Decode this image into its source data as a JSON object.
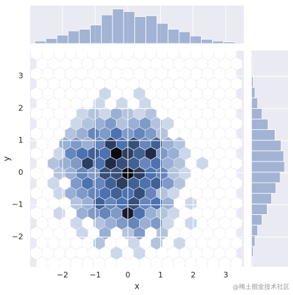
{
  "chart_data": {
    "type": "hexbin",
    "xlabel": "x",
    "ylabel": "y",
    "xlim": [
      -2.99,
      3.55
    ],
    "ylim": [
      -2.93,
      3.8
    ],
    "xticks": [
      {
        "value": -2,
        "label": "−2"
      },
      {
        "value": -1,
        "label": "−1"
      },
      0,
      1,
      2,
      3
    ],
    "yticks": [
      {
        "value": -2,
        "label": "−2"
      },
      {
        "value": -1,
        "label": "−1"
      },
      0,
      1,
      2,
      3
    ],
    "grid": true,
    "cmap": [
      "#e6ebf5",
      "#4c72b0",
      "#0b0b12"
    ],
    "hexes": [
      [
        -0.35,
        -2.5,
        1
      ],
      [
        0.35,
        -2.5,
        1
      ],
      [
        -0.88,
        -2.19,
        2
      ],
      [
        0.18,
        -2.19,
        1
      ],
      [
        0.88,
        -2.19,
        2
      ],
      [
        1.58,
        -2.19,
        1
      ],
      [
        -1.4,
        -1.88,
        1
      ],
      [
        -0.7,
        -1.88,
        3
      ],
      [
        0,
        -1.88,
        2
      ],
      [
        0.35,
        -1.88,
        4
      ],
      [
        1.05,
        -1.88,
        2
      ],
      [
        -1.58,
        -1.57,
        1
      ],
      [
        -0.88,
        -1.57,
        2
      ],
      [
        -0.53,
        -1.57,
        3
      ],
      [
        -0.18,
        -1.57,
        4
      ],
      [
        0.18,
        -1.57,
        5
      ],
      [
        0.53,
        -1.57,
        3
      ],
      [
        0.88,
        -1.57,
        4
      ],
      [
        1.23,
        -1.57,
        1
      ],
      [
        1.93,
        -1.57,
        1
      ],
      [
        -2.1,
        -1.26,
        1
      ],
      [
        -1.4,
        -1.26,
        3
      ],
      [
        -1.05,
        -1.26,
        4
      ],
      [
        -0.7,
        -1.26,
        5
      ],
      [
        -0.35,
        -1.26,
        4
      ],
      [
        0,
        -1.26,
        11
      ],
      [
        0.35,
        -1.26,
        6
      ],
      [
        0.7,
        -1.26,
        3
      ],
      [
        1.05,
        -1.26,
        2
      ],
      [
        1.4,
        -1.26,
        1
      ],
      [
        -1.58,
        -0.95,
        2
      ],
      [
        -1.23,
        -0.95,
        3
      ],
      [
        -0.88,
        -0.95,
        7
      ],
      [
        -0.53,
        -0.95,
        5
      ],
      [
        -0.18,
        -0.95,
        6
      ],
      [
        0.18,
        -0.95,
        8
      ],
      [
        0.53,
        -0.95,
        5
      ],
      [
        0.88,
        -0.95,
        6
      ],
      [
        1.23,
        -0.95,
        3
      ],
      [
        1.93,
        -0.95,
        1
      ],
      [
        -2.1,
        -0.64,
        1
      ],
      [
        -1.75,
        -0.64,
        3
      ],
      [
        -1.4,
        -0.64,
        4
      ],
      [
        -1.05,
        -0.64,
        5
      ],
      [
        -0.7,
        -0.64,
        6
      ],
      [
        -0.35,
        -0.64,
        7
      ],
      [
        0,
        -0.64,
        6
      ],
      [
        0.35,
        -0.64,
        8
      ],
      [
        0.7,
        -0.64,
        5
      ],
      [
        1.05,
        -0.64,
        2
      ],
      [
        1.4,
        -0.64,
        1
      ],
      [
        -2.28,
        -0.33,
        1
      ],
      [
        -1.58,
        -0.33,
        4
      ],
      [
        -1.23,
        -0.33,
        6
      ],
      [
        -0.88,
        -0.33,
        5
      ],
      [
        -0.53,
        -0.33,
        7
      ],
      [
        -0.18,
        -0.33,
        9
      ],
      [
        0.18,
        -0.33,
        7
      ],
      [
        0.53,
        -0.33,
        6
      ],
      [
        0.88,
        -0.33,
        7
      ],
      [
        1.23,
        -0.33,
        4
      ],
      [
        1.58,
        -0.33,
        2
      ],
      [
        -2.1,
        -0.02,
        2
      ],
      [
        -1.75,
        -0.02,
        3
      ],
      [
        -1.4,
        -0.02,
        5
      ],
      [
        -1.05,
        -0.02,
        4
      ],
      [
        -0.7,
        -0.02,
        8
      ],
      [
        -0.35,
        -0.02,
        8
      ],
      [
        0,
        -0.02,
        12
      ],
      [
        0.35,
        -0.02,
        9
      ],
      [
        0.7,
        -0.02,
        6
      ],
      [
        1.05,
        -0.02,
        5
      ],
      [
        1.4,
        -0.02,
        2
      ],
      [
        1.75,
        -0.02,
        1
      ],
      [
        -2.28,
        0.29,
        2
      ],
      [
        -1.93,
        0.29,
        3
      ],
      [
        -1.58,
        0.29,
        4
      ],
      [
        -1.23,
        0.29,
        9
      ],
      [
        -0.88,
        0.29,
        6
      ],
      [
        -0.53,
        0.29,
        10
      ],
      [
        -0.18,
        0.29,
        8
      ],
      [
        0.18,
        0.29,
        7
      ],
      [
        0.53,
        0.29,
        5
      ],
      [
        0.88,
        0.29,
        6
      ],
      [
        1.23,
        0.29,
        3
      ],
      [
        1.58,
        0.29,
        2
      ],
      [
        2.28,
        0.29,
        1
      ],
      [
        -2.1,
        0.6,
        1
      ],
      [
        -1.75,
        0.6,
        5
      ],
      [
        -1.4,
        0.6,
        6
      ],
      [
        -1.05,
        0.6,
        7
      ],
      [
        -0.7,
        0.6,
        6
      ],
      [
        -0.35,
        0.6,
        12
      ],
      [
        0,
        0.6,
        9
      ],
      [
        0.35,
        0.6,
        7
      ],
      [
        0.7,
        0.6,
        10
      ],
      [
        1.05,
        0.6,
        4
      ],
      [
        1.4,
        0.6,
        3
      ],
      [
        1.75,
        0.6,
        1
      ],
      [
        -1.93,
        0.91,
        3
      ],
      [
        -1.58,
        0.91,
        4
      ],
      [
        -1.23,
        0.91,
        3
      ],
      [
        -0.88,
        0.91,
        5
      ],
      [
        -0.53,
        0.91,
        9
      ],
      [
        -0.18,
        0.91,
        6
      ],
      [
        0.18,
        0.91,
        8
      ],
      [
        0.53,
        0.91,
        5
      ],
      [
        0.88,
        0.91,
        7
      ],
      [
        1.23,
        0.91,
        3
      ],
      [
        1.58,
        0.91,
        2
      ],
      [
        -1.75,
        1.22,
        2
      ],
      [
        -1.4,
        1.22,
        3
      ],
      [
        -1.05,
        1.22,
        5
      ],
      [
        -0.7,
        1.22,
        4
      ],
      [
        -0.35,
        1.22,
        6
      ],
      [
        0,
        1.22,
        4
      ],
      [
        0.35,
        1.22,
        5
      ],
      [
        0.7,
        1.22,
        4
      ],
      [
        1.05,
        1.22,
        2
      ],
      [
        -1.58,
        1.53,
        1
      ],
      [
        -1.23,
        1.53,
        2
      ],
      [
        -0.88,
        1.53,
        3
      ],
      [
        -0.53,
        1.53,
        4
      ],
      [
        -0.18,
        1.53,
        2
      ],
      [
        0.18,
        1.53,
        3
      ],
      [
        0.53,
        1.53,
        4
      ],
      [
        0.88,
        1.53,
        2
      ],
      [
        1.23,
        1.53,
        1
      ],
      [
        -1.4,
        1.84,
        1
      ],
      [
        -1.05,
        1.84,
        2
      ],
      [
        -0.7,
        1.84,
        1
      ],
      [
        -0.35,
        1.84,
        3
      ],
      [
        0,
        1.84,
        2
      ],
      [
        0.35,
        1.84,
        1
      ],
      [
        0.7,
        1.84,
        2
      ],
      [
        -0.88,
        2.15,
        1
      ],
      [
        -0.18,
        2.15,
        1
      ],
      [
        0.53,
        2.15,
        1
      ],
      [
        -0.7,
        2.46,
        1
      ],
      [
        0.35,
        2.46,
        1
      ]
    ],
    "marginal_x": {
      "color": "#4c72b0",
      "ylim": [
        0,
        45
      ],
      "bins": [
        -2.85,
        -2.51,
        -2.17,
        -1.83,
        -1.49,
        -1.15,
        -0.81,
        -0.47,
        -0.13,
        0.21,
        0.55,
        0.89,
        1.23,
        1.57,
        1.91,
        2.25,
        2.59,
        2.93,
        3.27
      ],
      "counts": [
        3,
        6,
        10,
        15,
        17,
        22,
        34,
        41,
        38,
        32,
        33,
        24,
        17,
        14,
        9,
        5,
        3,
        2
      ]
    },
    "marginal_y": {
      "color": "#4c72b0",
      "xlim": [
        0,
        42
      ],
      "bins": [
        -2.95,
        -2.62,
        -2.29,
        -1.96,
        -1.63,
        -1.3,
        -0.97,
        -0.64,
        -0.31,
        0.02,
        0.35,
        0.68,
        1.01,
        1.34,
        1.67,
        2.0,
        2.33,
        2.66,
        2.99,
        3.32,
        3.65
      ],
      "counts": [
        1,
        2,
        4,
        7,
        12,
        18,
        23,
        28,
        33,
        38,
        37,
        34,
        27,
        19,
        12,
        7,
        4,
        2,
        1,
        1
      ]
    }
  },
  "watermark": "@稀土掘金技术社区"
}
